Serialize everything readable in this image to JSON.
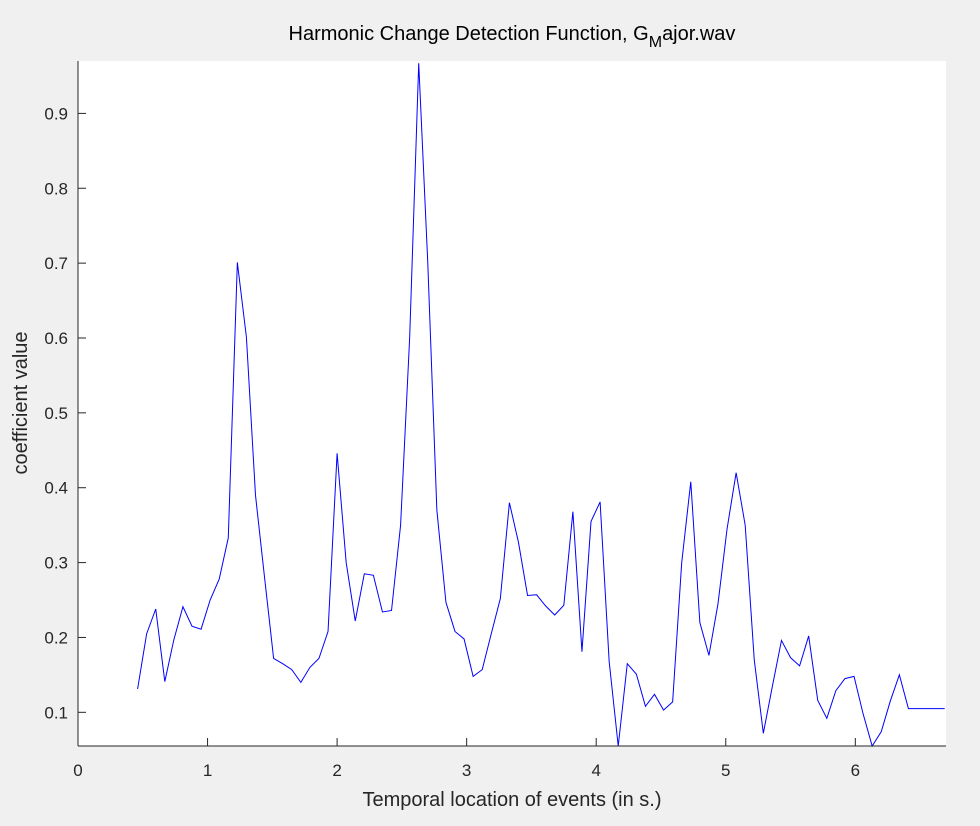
{
  "chart_data": {
    "type": "line",
    "title": {
      "main": "Harmonic Change Detection Function, G",
      "subscript": "M",
      "tail": "ajor.wav"
    },
    "xlabel": "Temporal location of events (in s.)",
    "ylabel": "coefficient value",
    "xlim": [
      0,
      6.7
    ],
    "ylim": [
      0.055,
      0.97
    ],
    "xticks": [
      0,
      1,
      2,
      3,
      4,
      5,
      6
    ],
    "xtick_labels": [
      "0",
      "1",
      "2",
      "3",
      "4",
      "5",
      "6"
    ],
    "yticks": [
      0.1,
      0.2,
      0.3,
      0.4,
      0.5,
      0.6,
      0.7,
      0.8,
      0.9
    ],
    "ytick_labels": [
      "0.1",
      "0.2",
      "0.3",
      "0.4",
      "0.5",
      "0.6",
      "0.7",
      "0.8",
      "0.9"
    ],
    "grid": false,
    "line_color": "#0000ff",
    "series": [
      {
        "x": [
          0.46,
          0.53,
          0.6,
          0.67,
          0.74,
          0.81,
          0.88,
          0.95,
          1.02,
          1.09,
          1.16,
          1.23,
          1.3,
          1.37,
          1.44,
          1.51,
          1.58,
          1.65,
          1.72,
          1.79,
          1.86,
          1.93,
          2.0,
          2.07,
          2.14,
          2.21,
          2.28,
          2.35,
          2.42,
          2.49,
          2.56,
          2.63,
          2.7,
          2.77,
          2.84,
          2.91,
          2.98,
          3.05,
          3.12,
          3.19,
          3.26,
          3.33,
          3.4,
          3.47,
          3.54,
          3.61,
          3.68,
          3.75,
          3.82,
          3.89,
          3.96,
          4.03,
          4.1,
          4.17,
          4.24,
          4.31,
          4.38,
          4.45,
          4.52,
          4.59,
          4.66,
          4.73,
          4.8,
          4.87,
          4.94,
          5.01,
          5.08,
          5.15,
          5.22,
          5.29,
          5.36,
          5.43,
          5.5,
          5.57,
          5.64,
          5.71,
          5.78,
          5.85,
          5.92,
          5.99,
          6.06,
          6.13,
          6.2,
          6.27,
          6.34,
          6.41,
          6.48,
          6.55,
          6.62,
          6.69
        ],
        "y": [
          0.131,
          0.205,
          0.238,
          0.141,
          0.197,
          0.241,
          0.215,
          0.211,
          0.25,
          0.278,
          0.333,
          0.701,
          0.601,
          0.39,
          0.28,
          0.172,
          0.165,
          0.157,
          0.14,
          0.16,
          0.172,
          0.208,
          0.446,
          0.3,
          0.222,
          0.285,
          0.283,
          0.234,
          0.236,
          0.35,
          0.6,
          0.967,
          0.7,
          0.37,
          0.247,
          0.208,
          0.198,
          0.148,
          0.157,
          0.205,
          0.252,
          0.38,
          0.327,
          0.256,
          0.257,
          0.242,
          0.23,
          0.243,
          0.368,
          0.181,
          0.355,
          0.381,
          0.168,
          0.055,
          0.165,
          0.151,
          0.108,
          0.124,
          0.103,
          0.114,
          0.3,
          0.408,
          0.22,
          0.176,
          0.245,
          0.345,
          0.42,
          0.35,
          0.17,
          0.072,
          0.135,
          0.196,
          0.173,
          0.162,
          0.202,
          0.116,
          0.092,
          0.129,
          0.145,
          0.148,
          0.098,
          0.055,
          0.074,
          0.115,
          0.15,
          0.105,
          0.105,
          0.105,
          0.105,
          0.105
        ]
      }
    ]
  }
}
